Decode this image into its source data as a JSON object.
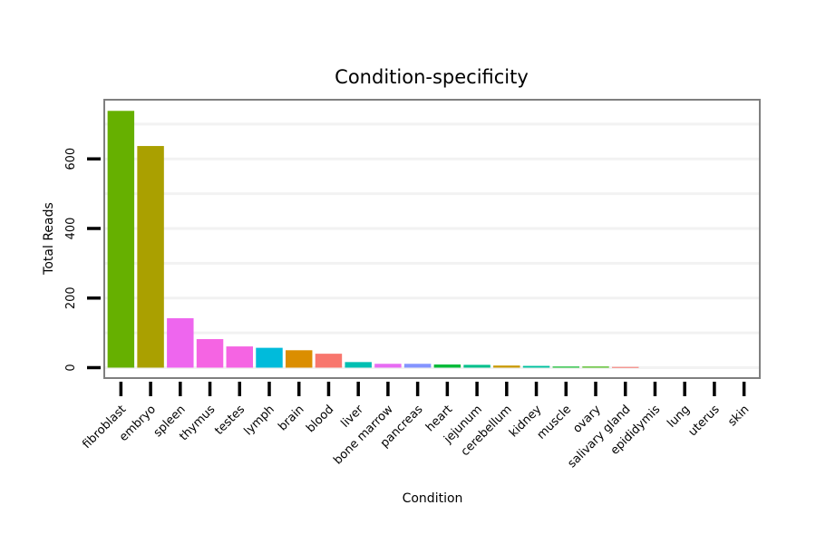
{
  "chart_data": {
    "type": "bar",
    "title": "Condition-specificity",
    "xlabel": "Condition",
    "ylabel": "Total Reads",
    "ylim": [
      -30,
      770
    ],
    "yticks": [
      0,
      200,
      400,
      600
    ],
    "grid": true,
    "categories": [
      "fibroblast",
      "embryo",
      "spleen",
      "thymus",
      "testes",
      "lymph",
      "brain",
      "blood",
      "liver",
      "bone marrow",
      "pancreas",
      "heart",
      "jejunum",
      "cerebellum",
      "kidney",
      "muscle",
      "ovary",
      "salivary gland",
      "epididymis",
      "lung",
      "uterus",
      "skin"
    ],
    "values": [
      738,
      637,
      142,
      82,
      61,
      57,
      50,
      40,
      16,
      11,
      11,
      9,
      8,
      6,
      5,
      3,
      3,
      2,
      0,
      0,
      0,
      0
    ],
    "colors": [
      "#66B000",
      "#AAA000",
      "#EE66EE",
      "#F564E3",
      "#F564E3",
      "#00BBDB",
      "#DB8E00",
      "#F8766D",
      "#00BFB2",
      "#E76BF3",
      "#8494FF",
      "#00BA38",
      "#00C08B",
      "#C99800",
      "#00C19F",
      "#00B81F",
      "#39B600",
      "#F8766D",
      "#F8766D",
      "#F8766D",
      "#F8766D",
      "#F8766D"
    ]
  }
}
